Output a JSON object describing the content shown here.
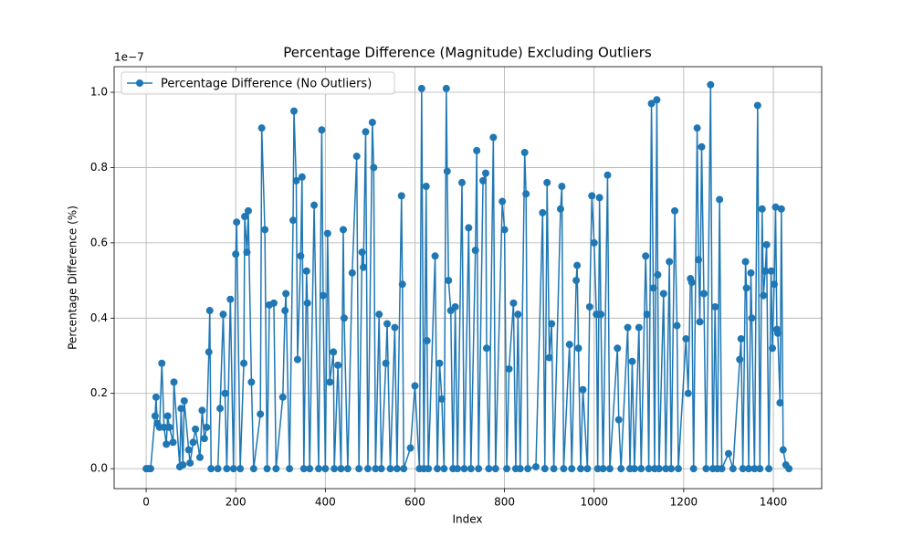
{
  "chart_data": {
    "type": "line",
    "title": "Percentage Difference (Magnitude) Excluding Outliers",
    "xlabel": "Index",
    "ylabel": "Percentage Difference (%)",
    "y_offset_label": "1e−7",
    "xlim": [
      -71.5,
      1508
    ],
    "ylim": [
      -0.053,
      1.068
    ],
    "xticks": [
      0,
      200,
      400,
      600,
      800,
      1000,
      1200,
      1400
    ],
    "yticks": [
      {
        "value": 0,
        "label": "0.0"
      },
      {
        "value": 0.2,
        "label": "0.2"
      },
      {
        "value": 0.4,
        "label": "0.4"
      },
      {
        "value": 0.6,
        "label": "0.6"
      },
      {
        "value": 0.8,
        "label": "0.8"
      },
      {
        "value": 1.0,
        "label": "1.0"
      }
    ],
    "grid": true,
    "legend_loc": "upper left",
    "x": [
      0,
      5,
      10,
      20,
      22,
      25,
      30,
      35,
      40,
      45,
      48,
      52,
      60,
      62,
      75,
      78,
      82,
      85,
      95,
      98,
      105,
      110,
      120,
      125,
      130,
      135,
      140,
      142,
      145,
      160,
      165,
      172,
      176,
      180,
      188,
      195,
      200,
      202,
      210,
      218,
      220,
      225,
      228,
      235,
      240,
      255,
      258,
      265,
      270,
      275,
      285,
      290,
      305,
      310,
      312,
      320,
      328,
      330,
      335,
      338,
      345,
      348,
      352,
      358,
      360,
      365,
      375,
      385,
      392,
      395,
      400,
      405,
      410,
      418,
      420,
      428,
      435,
      440,
      442,
      450,
      460,
      470,
      475,
      482,
      485,
      490,
      495,
      505,
      508,
      512,
      520,
      525,
      535,
      538,
      545,
      555,
      560,
      570,
      572,
      575,
      590,
      600,
      610,
      615,
      620,
      625,
      627,
      630,
      645,
      650,
      655,
      660,
      665,
      670,
      672,
      675,
      680,
      685,
      690,
      695,
      705,
      710,
      720,
      725,
      735,
      738,
      742,
      752,
      758,
      760,
      765,
      775,
      780,
      795,
      800,
      805,
      810,
      820,
      825,
      830,
      835,
      845,
      848,
      852,
      870,
      885,
      890,
      895,
      900,
      905,
      910,
      925,
      928,
      932,
      945,
      950,
      960,
      962,
      965,
      970,
      975,
      985,
      990,
      995,
      1000,
      1005,
      1008,
      1012,
      1015,
      1020,
      1030,
      1035,
      1052,
      1055,
      1060,
      1075,
      1080,
      1085,
      1090,
      1100,
      1105,
      1115,
      1118,
      1122,
      1128,
      1132,
      1135,
      1140,
      1142,
      1145,
      1155,
      1160,
      1168,
      1172,
      1180,
      1185,
      1188,
      1205,
      1210,
      1215,
      1218,
      1222,
      1230,
      1233,
      1236,
      1240,
      1245,
      1250,
      1260,
      1265,
      1270,
      1275,
      1280,
      1285,
      1300,
      1310,
      1325,
      1328,
      1332,
      1338,
      1340,
      1345,
      1350,
      1352,
      1358,
      1365,
      1370,
      1375,
      1378,
      1382,
      1385,
      1390,
      1395,
      1398,
      1402,
      1405,
      1408,
      1410,
      1415,
      1418,
      1422,
      1428,
      1435
    ],
    "series": [
      {
        "name": "Percentage Difference (No Outliers)",
        "color": "#1f77b4",
        "values": [
          0,
          0,
          0,
          0.14,
          0.19,
          0.12,
          0.11,
          0.28,
          0.11,
          0.065,
          0.14,
          0.11,
          0.07,
          0.23,
          0.005,
          0.16,
          0.01,
          0.18,
          0.05,
          0.015,
          0.07,
          0.105,
          0.03,
          0.155,
          0.08,
          0.11,
          0.31,
          0.42,
          0,
          0,
          0.16,
          0.41,
          0.2,
          0,
          0.45,
          0,
          0.57,
          0.655,
          0,
          0.28,
          0.67,
          0.575,
          0.685,
          0.23,
          0,
          0.145,
          0.905,
          0.635,
          0,
          0.435,
          0.44,
          0,
          0.19,
          0.42,
          0.465,
          0,
          0.66,
          0.95,
          0.765,
          0.29,
          0.565,
          0.775,
          0,
          0.525,
          0.44,
          0,
          0.7,
          0,
          0.9,
          0.46,
          0,
          0.625,
          0.23,
          0.31,
          0,
          0.275,
          0,
          0.635,
          0.4,
          0,
          0.52,
          0.83,
          0,
          0.575,
          0.535,
          0.895,
          0,
          0.92,
          0.8,
          0,
          0.41,
          0,
          0.28,
          0.385,
          0,
          0.375,
          0,
          0.725,
          0.49,
          0,
          0.055,
          0.22,
          0,
          1.01,
          0,
          0.75,
          0.34,
          0,
          0.565,
          0,
          0.28,
          0.185,
          0,
          1.01,
          0.79,
          0.5,
          0.42,
          0,
          0.43,
          0,
          0.76,
          0,
          0.64,
          0,
          0.58,
          0.845,
          0,
          0.765,
          0.785,
          0.32,
          0,
          0.88,
          0,
          0.71,
          0.635,
          0,
          0.265,
          0.44,
          0,
          0.41,
          0,
          0.84,
          0.73,
          0,
          0.005,
          0.68,
          0,
          0.76,
          0.295,
          0.385,
          0,
          0.69,
          0.75,
          0,
          0.33,
          0,
          0.5,
          0.54,
          0.32,
          0,
          0.21,
          0,
          0.43,
          0.725,
          0.6,
          0.41,
          0,
          0.72,
          0.41,
          0,
          0.78,
          0,
          0.32,
          0.13,
          0,
          0.375,
          0,
          0.285,
          0,
          0.375,
          0,
          0.565,
          0.41,
          0,
          0.97,
          0.48,
          0,
          0.98,
          0.515,
          0,
          0.465,
          0,
          0.55,
          0,
          0.685,
          0.38,
          0,
          0.345,
          0.2,
          0.505,
          0.495,
          0,
          0.905,
          0.555,
          0.39,
          0.855,
          0.465,
          0,
          1.02,
          0,
          0.43,
          0,
          0.715,
          0,
          0.04,
          0,
          0.29,
          0.345,
          0,
          0.55,
          0.48,
          0,
          0.52,
          0.4,
          0,
          0.965,
          0,
          0.69,
          0.46,
          0.525,
          0.595,
          0,
          0.525,
          0.32,
          0.49,
          0.695,
          0.37,
          0.36,
          0.175,
          0.69,
          0.05,
          0.01,
          0
        ]
      }
    ]
  }
}
